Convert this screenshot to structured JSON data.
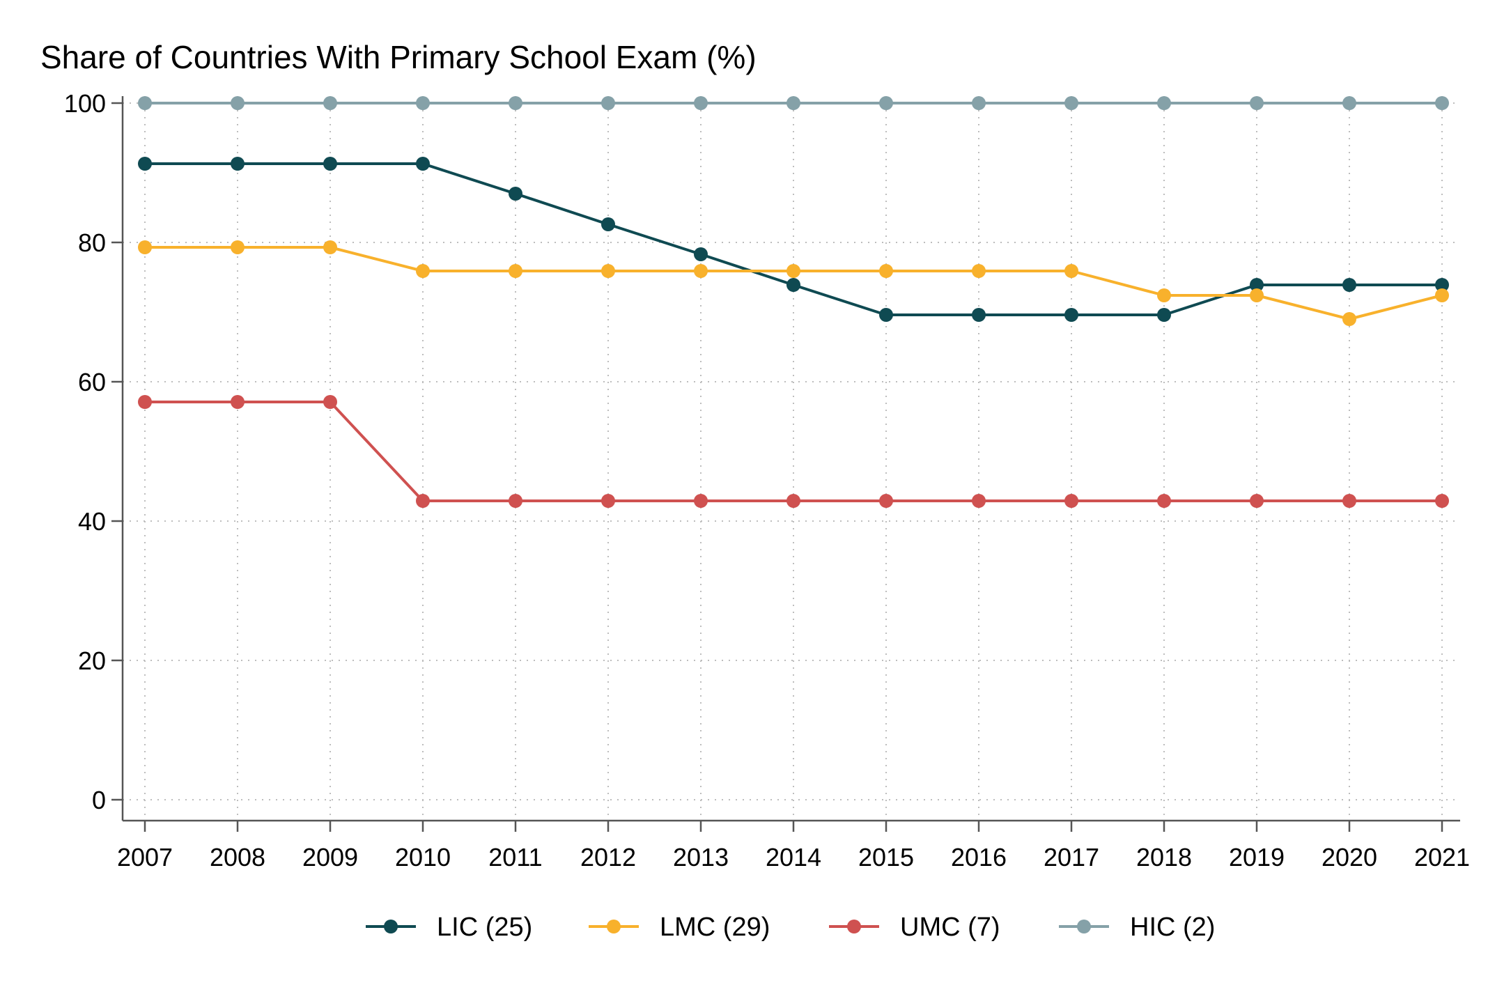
{
  "chart_data": {
    "type": "line",
    "title": "Share of Countries With Primary School Exam (%)",
    "xlabel": "",
    "ylabel": "",
    "x": [
      2007,
      2008,
      2009,
      2010,
      2011,
      2012,
      2013,
      2014,
      2015,
      2016,
      2017,
      2018,
      2019,
      2020,
      2021
    ],
    "xlim": [
      2007,
      2021
    ],
    "ylim": [
      0,
      100
    ],
    "yticks": [
      0,
      20,
      40,
      60,
      80,
      100
    ],
    "grid": true,
    "legend_position": "bottom",
    "series": [
      {
        "name": "LIC (25)",
        "color": "#0f4a52",
        "values": [
          91.3,
          91.3,
          91.3,
          91.3,
          87.0,
          82.6,
          78.3,
          73.9,
          69.6,
          69.6,
          69.6,
          69.6,
          73.9,
          73.9,
          73.9
        ]
      },
      {
        "name": "LMC (29)",
        "color": "#f8b12c",
        "values": [
          79.3,
          79.3,
          79.3,
          75.9,
          75.9,
          75.9,
          75.9,
          75.9,
          75.9,
          75.9,
          75.9,
          72.4,
          72.4,
          69.0,
          72.4
        ]
      },
      {
        "name": "UMC (7)",
        "color": "#cf5150",
        "values": [
          57.1,
          57.1,
          57.1,
          42.9,
          42.9,
          42.9,
          42.9,
          42.9,
          42.9,
          42.9,
          42.9,
          42.9,
          42.9,
          42.9,
          42.9
        ]
      },
      {
        "name": "HIC (2)",
        "color": "#85a1a8",
        "values": [
          100,
          100,
          100,
          100,
          100,
          100,
          100,
          100,
          100,
          100,
          100,
          100,
          100,
          100,
          100
        ]
      }
    ]
  }
}
